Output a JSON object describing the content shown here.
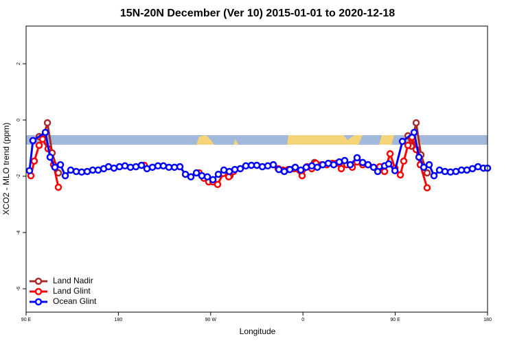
{
  "chart_data": {
    "type": "line",
    "title": "15N-20N December (Ver 10)   2015-01-01 to 2020-12-18",
    "x_label": "Longitude",
    "y_label": "XCO2 - MLO trend (ppm)",
    "xlim": [
      90,
      540
    ],
    "ylim": [
      -6.83,
      3.34
    ],
    "xticks": [
      {
        "value": 90,
        "label": "90 E"
      },
      {
        "value": 180,
        "label": "180"
      },
      {
        "value": 270,
        "label": "90 W"
      },
      {
        "value": 360,
        "label": "0"
      },
      {
        "value": 450,
        "label": "90 E"
      },
      {
        "value": 540,
        "label": "180"
      }
    ],
    "yticks": [
      2,
      0,
      -2,
      -4,
      -6
    ],
    "legend_position": "bottomleft",
    "series": [
      {
        "name": "Land Nadir",
        "color": "#a52a2a",
        "x": [
          102.7,
          106.7,
          110.8,
          115.4,
          121.5,
          200,
          288.9,
          330,
          371.3,
          385,
          396.1,
          415,
          434.9,
          450,
          462.4,
          465.7,
          470.4,
          475.1,
          481.1
        ],
        "values": [
          -0.59,
          -0.63,
          -0.1,
          -1.17,
          -1.88,
          null,
          -1.98,
          null,
          -1.51,
          null,
          -1.51,
          null,
          -1.68,
          null,
          -0.56,
          -0.93,
          -0.1,
          -1.24,
          -1.88
        ]
      },
      {
        "name": "Land Glint",
        "color": "#ff0000",
        "x": [
          94.7,
          98.0,
          102.7,
          106.1,
          111.4,
          116.8,
          121.5,
          160,
          205.2,
          230,
          258.8,
          263.4,
          268.1,
          272.2,
          276.8,
          282.2,
          287.6,
          292.2,
          310,
          335.8,
          340.5,
          345.8,
          351.2,
          359.2,
          363.9,
          368.6,
          372.6,
          378.0,
          383.3,
          388.7,
          392.7,
          397.4,
          402.8,
          408.1,
          412.8,
          418.2,
          423.5,
          428.9,
          434.9,
          439.6,
          445.0,
          449.7,
          455.0,
          458.3,
          462.4,
          466.4,
          470.4,
          474.4,
          481.1
        ],
        "values": [
          -1.98,
          -1.46,
          -0.9,
          -0.68,
          -1.02,
          -1.59,
          -2.39,
          null,
          -1.61,
          null,
          -1.88,
          -2.07,
          -2.2,
          -2.2,
          -2.29,
          -1.9,
          -2.02,
          -1.83,
          null,
          -1.73,
          -1.78,
          -1.76,
          -1.73,
          -1.98,
          -1.66,
          -1.73,
          -1.54,
          -1.59,
          -1.59,
          -1.54,
          -1.54,
          -1.73,
          -1.59,
          -1.68,
          -1.49,
          -1.59,
          -1.59,
          -1.68,
          -1.66,
          -1.83,
          -1.2,
          -1.71,
          -1.95,
          -1.46,
          -0.9,
          -0.61,
          -1.05,
          -1.59,
          -2.41
        ]
      },
      {
        "name": "Ocean Glint",
        "color": "#0000ff",
        "x": [
          93.3,
          96.7,
          108.8,
          113.4,
          118.1,
          123.5,
          128.2,
          133.5,
          138.9,
          144.2,
          149.6,
          155.0,
          160.3,
          165.7,
          170.4,
          175.7,
          181.1,
          186.4,
          191.8,
          197.1,
          202.5,
          207.9,
          213.2,
          218.6,
          223.9,
          229.3,
          234.7,
          240.0,
          245.4,
          250.7,
          256.1,
          261.4,
          266.8,
          272.2,
          277.5,
          282.9,
          288.2,
          293.6,
          298.9,
          304.3,
          309.7,
          315.0,
          320.4,
          325.7,
          331.1,
          336.5,
          341.8,
          347.2,
          352.5,
          357.9,
          363.2,
          368.6,
          374.0,
          379.3,
          384.7,
          390.0,
          395.4,
          400.7,
          406.1,
          412.8,
          418.2,
          423.5,
          428.9,
          432.9,
          439.6,
          443.6,
          449.7,
          457.0,
          468.4,
          473.1,
          477.8,
          483.1,
          487.8,
          493.2,
          498.5,
          503.9,
          509.2,
          514.6,
          519.9,
          525.3,
          530.7,
          536.0,
          540.0
        ],
        "values": [
          -1.8,
          -0.73,
          -0.44,
          -1.32,
          -1.68,
          -1.59,
          -1.98,
          -1.78,
          -1.83,
          -1.85,
          -1.83,
          -1.78,
          -1.78,
          -1.73,
          -1.66,
          -1.71,
          -1.66,
          -1.63,
          -1.68,
          -1.66,
          -1.61,
          -1.73,
          -1.68,
          -1.63,
          -1.63,
          -1.68,
          -1.68,
          -1.66,
          -1.93,
          -2.02,
          -1.88,
          -1.98,
          -2.02,
          -2.12,
          -1.93,
          -1.78,
          -1.83,
          -1.76,
          -1.73,
          -1.63,
          -1.61,
          -1.61,
          -1.66,
          -1.63,
          -1.59,
          -1.76,
          -1.83,
          -1.76,
          -1.68,
          -1.78,
          -1.68,
          -1.63,
          -1.68,
          -1.59,
          -1.54,
          -1.59,
          -1.49,
          -1.44,
          -1.59,
          -1.34,
          -1.51,
          -1.59,
          -1.68,
          -1.83,
          -1.63,
          -1.56,
          -1.8,
          -0.76,
          -0.44,
          -1.32,
          -1.68,
          -1.59,
          -1.98,
          -1.78,
          -1.83,
          -1.85,
          -1.83,
          -1.78,
          -1.78,
          -1.73,
          -1.66,
          -1.71,
          -1.71
        ]
      }
    ]
  }
}
